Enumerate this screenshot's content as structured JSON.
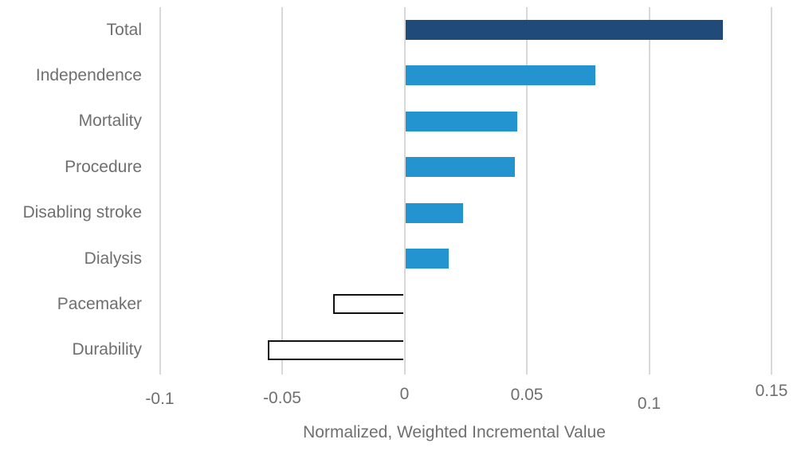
{
  "chart_data": {
    "type": "bar",
    "orientation": "horizontal",
    "title": "",
    "xlabel": "Normalized, Weighted Incremental Value",
    "ylabel": "",
    "xlim": [
      -0.1,
      0.15
    ],
    "grid": "vertical-gridlines-on",
    "legend": "none",
    "categories": [
      "Total",
      "Independence",
      "Mortality",
      "Procedure",
      "Disabling stroke",
      "Dialysis",
      "Pacemaker",
      "Durability"
    ],
    "values": [
      0.13,
      0.078,
      0.046,
      0.045,
      0.024,
      0.018,
      -0.029,
      -0.056
    ],
    "bar_styles": [
      "total",
      "positive",
      "positive",
      "positive",
      "positive",
      "positive",
      "negative",
      "negative"
    ],
    "x_ticks": [
      {
        "label": "-0.1",
        "value": -0.1,
        "dy": 6
      },
      {
        "label": "-0.05",
        "value": -0.05,
        "dy": 5
      },
      {
        "label": "0",
        "value": 0,
        "dy": 0
      },
      {
        "label": "0.05",
        "value": 0.05,
        "dy": 1
      },
      {
        "label": "0.1",
        "value": 0.1,
        "dy": 12
      },
      {
        "label": "0.15",
        "value": 0.15,
        "dy": -4
      }
    ],
    "colors": {
      "total_fill": "#204a7a",
      "positive_fill": "#2394d0",
      "negative_fill": "#ffffff",
      "negative_border": "#111111",
      "gridline": "#d8d8d8",
      "text": "#6f6f6f"
    }
  }
}
